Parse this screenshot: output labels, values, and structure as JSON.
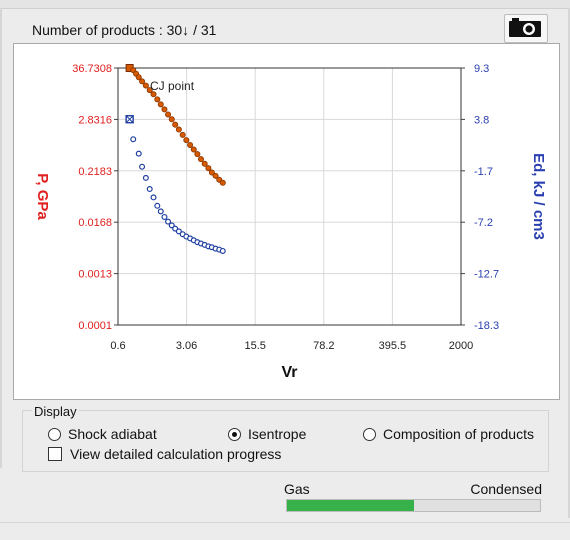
{
  "header": {
    "count_text": "Number of products : 30↓ / 31",
    "camera_icon": "camera-icon"
  },
  "chart_data": {
    "type": "scatter",
    "title": "",
    "annotation": "CJ point",
    "xlabel": "Vr",
    "ylabel_left": "P, GPa",
    "ylabel_right": "Ed, kJ / cm3",
    "xscale": "log",
    "xticks": [
      "0.6",
      "3.06",
      "15.5",
      "78.2",
      "395.5",
      "2000"
    ],
    "xlim": [
      0.6,
      2000
    ],
    "yleft_scale": "log",
    "yleft_ticks": [
      "36.7308",
      "2.8316",
      "0.2183",
      "0.0168",
      "0.0013",
      "0.0001"
    ],
    "yleft_lim": [
      0.0001,
      36.7308
    ],
    "yright_ticks": [
      "9.3",
      "3.8",
      "-1.7",
      "-7.2",
      "-12.7",
      "-18.3"
    ],
    "yright_lim": [
      -18.3,
      9.3
    ],
    "grid": true,
    "colors": {
      "pressure": "#d55a00",
      "energy": "#1f3fa0",
      "left_axis": "#e02020",
      "right_axis": "#2a3fb0"
    },
    "series": [
      {
        "axis": "left",
        "marker": "filled",
        "x": [
          0.79,
          0.86,
          0.92,
          0.98,
          1.06,
          1.16,
          1.27,
          1.39,
          1.52,
          1.65,
          1.8,
          1.96,
          2.14,
          2.32,
          2.53,
          2.77,
          3.02,
          3.3,
          3.6,
          3.92,
          4.27,
          4.66,
          5.09,
          5.52,
          6.03,
          6.58,
          7.15
        ],
        "y": [
          36.7,
          33.0,
          27.6,
          23.2,
          18.8,
          15.3,
          12.2,
          9.9,
          7.7,
          6.0,
          4.66,
          3.62,
          2.85,
          2.18,
          1.71,
          1.31,
          1.01,
          0.79,
          0.63,
          0.5,
          0.39,
          0.31,
          0.25,
          0.2,
          0.17,
          0.14,
          0.12
        ]
      },
      {
        "axis": "right",
        "marker": "open",
        "x": [
          0.79,
          0.86,
          0.98,
          1.06,
          1.16,
          1.27,
          1.39,
          1.52,
          1.65,
          1.8,
          1.96,
          2.14,
          2.32,
          2.53,
          2.77,
          3.02,
          3.3,
          3.6,
          3.92,
          4.27,
          4.66,
          5.09,
          5.52,
          6.03,
          6.58,
          7.15
        ],
        "y": [
          3.8,
          1.65,
          0.1,
          -1.3,
          -2.5,
          -3.7,
          -4.6,
          -5.5,
          -6.1,
          -6.7,
          -7.2,
          -7.6,
          -7.95,
          -8.25,
          -8.55,
          -8.8,
          -9.0,
          -9.2,
          -9.4,
          -9.55,
          -9.7,
          -9.85,
          -9.95,
          -10.1,
          -10.2,
          -10.35
        ]
      }
    ]
  },
  "display": {
    "title": "Display",
    "options": [
      {
        "label": "Shock adiabat",
        "selected": false
      },
      {
        "label": "Isentrope",
        "selected": true
      },
      {
        "label": "Composition of products",
        "selected": false
      }
    ],
    "checkbox_label": "View detailed calculation progress",
    "checkbox_checked": false
  },
  "phase": {
    "gas_label": "Gas",
    "condensed_label": "Condensed",
    "gas_fraction": 0.5
  }
}
